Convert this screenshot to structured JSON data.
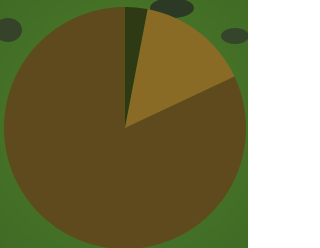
{
  "chart_data": {
    "type": "pie",
    "values": [
      3,
      15,
      82
    ],
    "colors": [
      "#2e3a14",
      "#8a6b26",
      "#5e4a1c"
    ]
  }
}
